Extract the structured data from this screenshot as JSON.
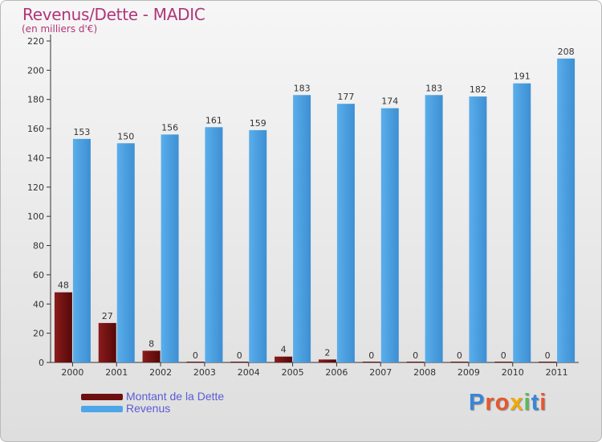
{
  "title": "Revenus/Dette - MADIC",
  "subtitle": "(en milliers d'€)",
  "colors": {
    "dette": "#6d0f0f",
    "revenus": "#4ea6e8",
    "title": "#b1357a",
    "legend_text": "#5b5bd6"
  },
  "legend": {
    "items": [
      {
        "label": "Montant de la Dette",
        "color": "#6d0f0f"
      },
      {
        "label": "Revenus",
        "color": "#4ea6e8"
      }
    ]
  },
  "logo": {
    "text": "Proxiti"
  },
  "chart_data": {
    "type": "bar",
    "title": "Revenus/Dette - MADIC",
    "ylabel": "(en milliers d'€)",
    "xlabel": "",
    "categories": [
      "2000",
      "2001",
      "2002",
      "2003",
      "2004",
      "2005",
      "2006",
      "2007",
      "2008",
      "2009",
      "2010",
      "2011"
    ],
    "series": [
      {
        "name": "Montant de la Dette",
        "values": [
          48,
          27,
          8,
          0,
          0,
          4,
          2,
          0,
          0,
          0,
          0,
          0
        ]
      },
      {
        "name": "Revenus",
        "values": [
          153,
          150,
          156,
          161,
          159,
          183,
          177,
          174,
          183,
          182,
          191,
          208
        ]
      }
    ],
    "ylim": [
      0,
      220
    ],
    "yticks": [
      0,
      20,
      40,
      60,
      80,
      100,
      120,
      140,
      160,
      180,
      200,
      220
    ],
    "grid": false,
    "legend_position": "bottom-left"
  }
}
